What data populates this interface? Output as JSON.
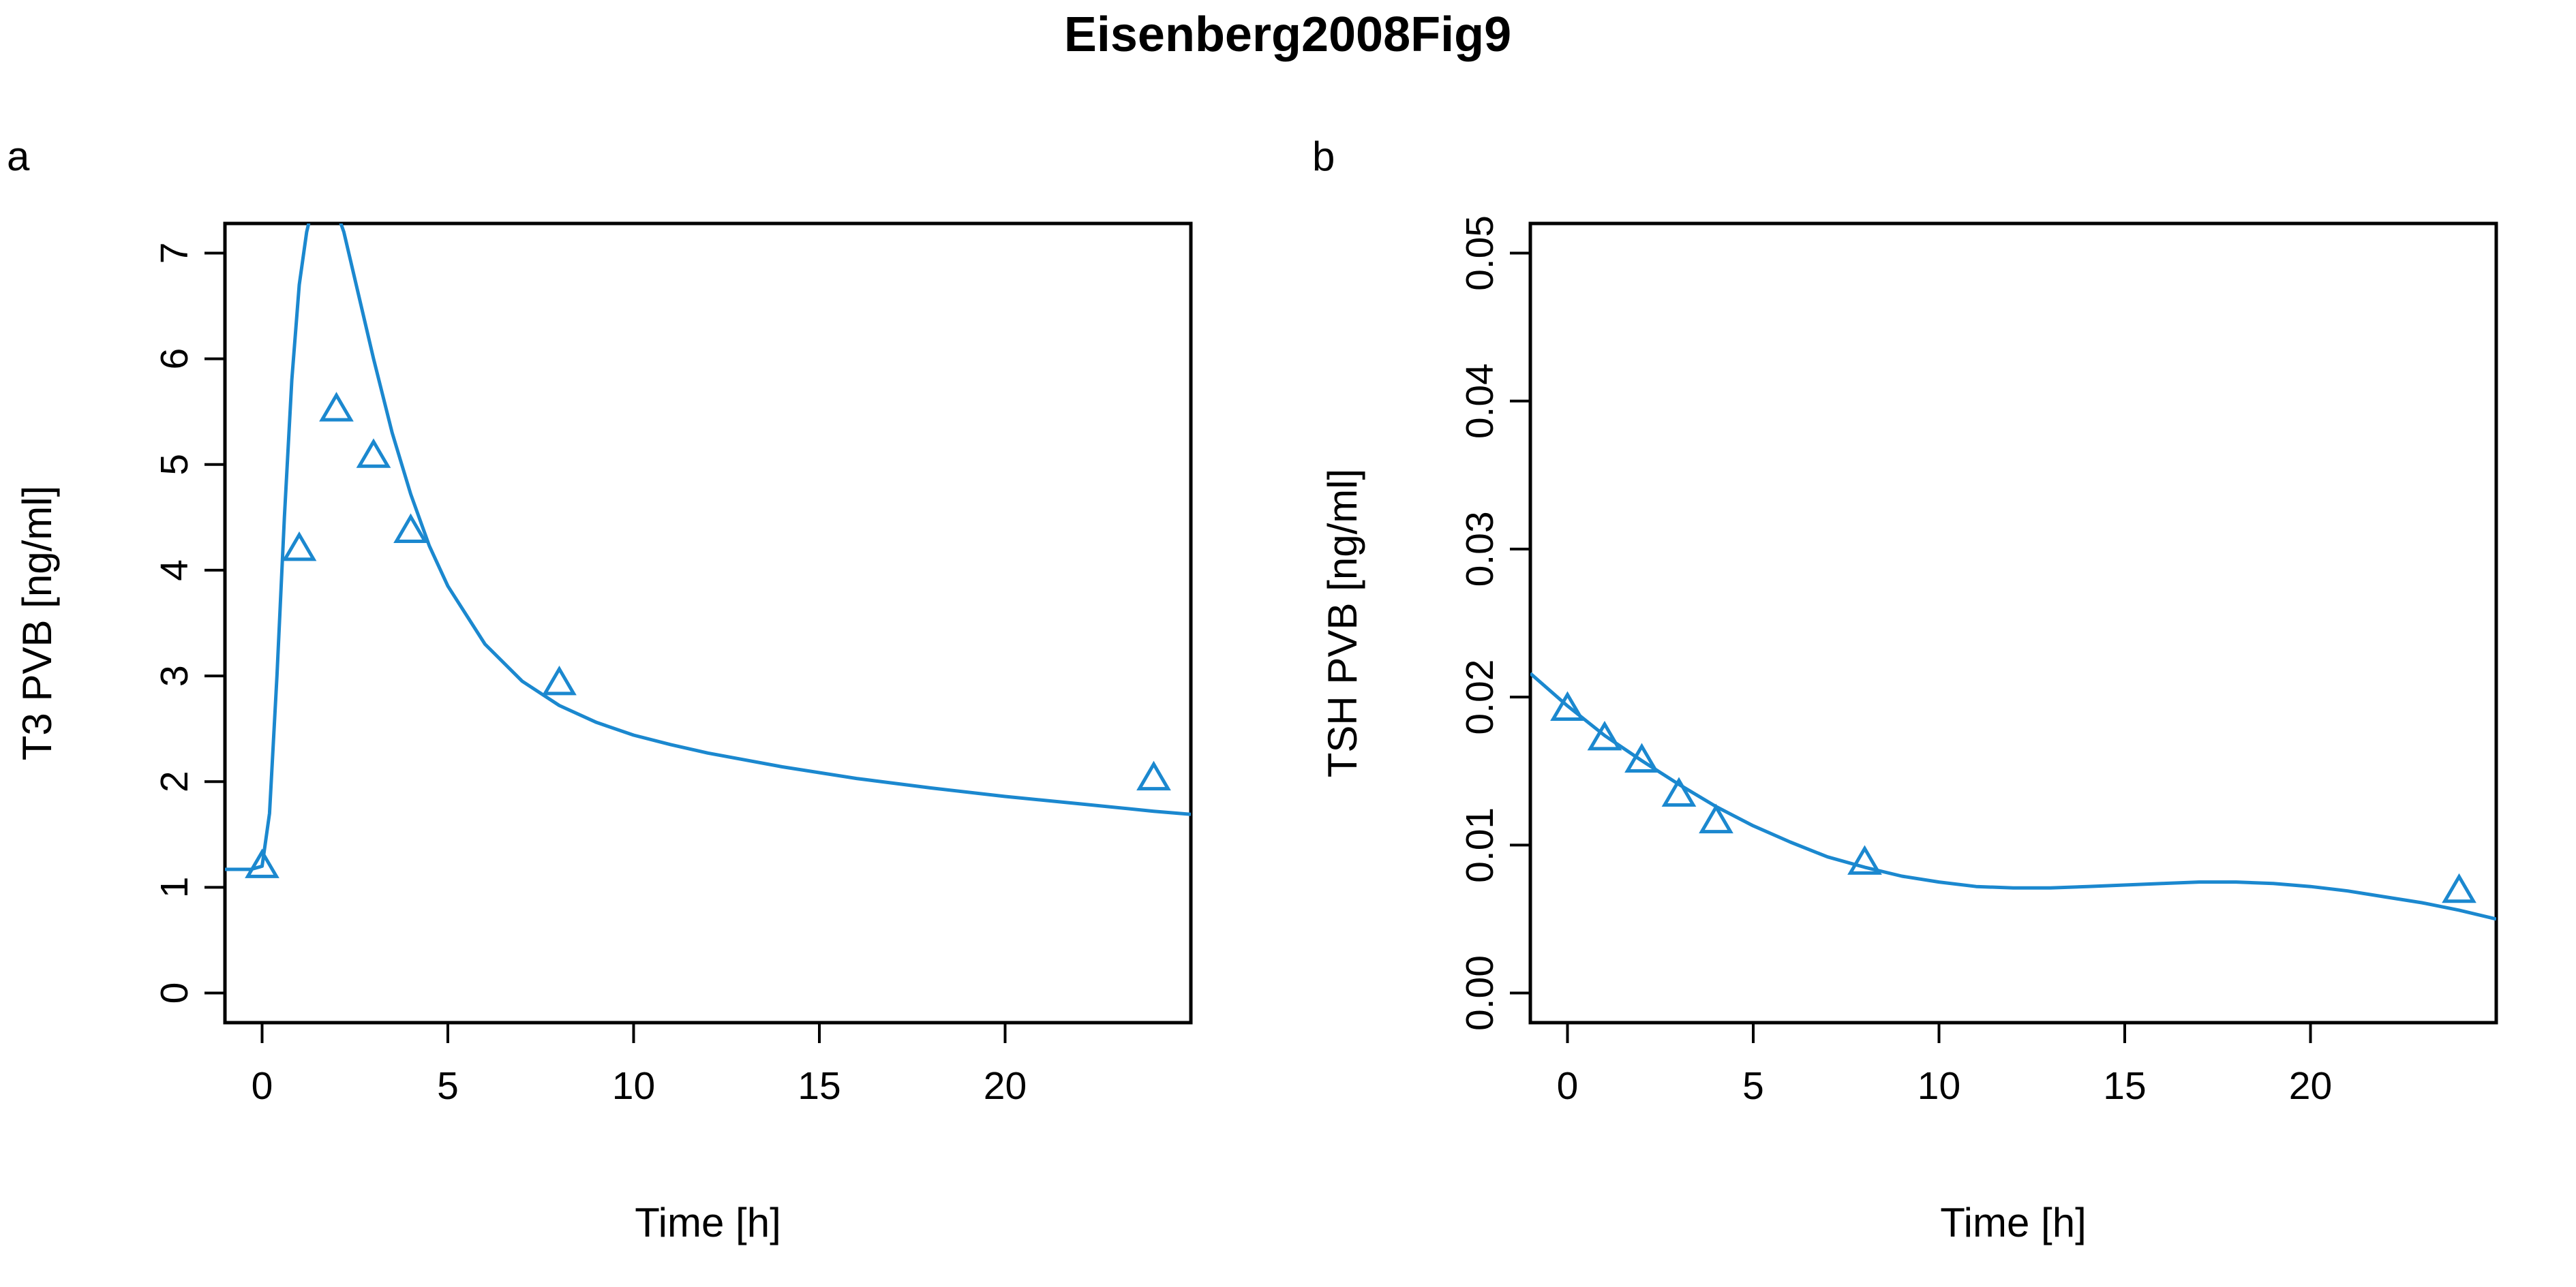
{
  "figure": {
    "title": "Eisenberg2008Fig9"
  },
  "colors": {
    "series": "#1b88cf",
    "axis": "#000000"
  },
  "chart_data": [
    {
      "type": "line",
      "panel_label": "a",
      "xlabel": "Time [h]",
      "ylabel": "T3 PVB [ng/ml]",
      "xlim": [
        -1,
        25
      ],
      "ylim": [
        -0.28,
        7.28
      ],
      "xticks": [
        0,
        5,
        10,
        15,
        20
      ],
      "xtick_labels": [
        "0",
        "5",
        "10",
        "15",
        "20"
      ],
      "yticks": [
        0,
        1,
        2,
        3,
        4,
        5,
        6,
        7
      ],
      "ytick_labels": [
        "0",
        "1",
        "2",
        "3",
        "4",
        "5",
        "6",
        "7"
      ],
      "grid": false,
      "observed": {
        "marker": "triangle-open",
        "x": [
          0,
          1,
          2,
          3,
          4,
          8,
          24
        ],
        "y": [
          1.2,
          4.2,
          5.52,
          5.08,
          4.37,
          2.93,
          2.03
        ]
      },
      "simulated": {
        "x": [
          -1,
          -0.3,
          0,
          0.2,
          0.4,
          0.6,
          0.8,
          1.0,
          1.2,
          1.4,
          1.7,
          2.0,
          2.2,
          2.6,
          3.0,
          3.5,
          4.0,
          4.5,
          5.0,
          6.0,
          7.0,
          8.0,
          9.0,
          10,
          11,
          12,
          14,
          16,
          18,
          20,
          22,
          24,
          25
        ],
        "y": [
          1.17,
          1.17,
          1.2,
          1.7,
          3.0,
          4.5,
          5.8,
          6.7,
          7.2,
          7.5,
          7.55,
          7.4,
          7.2,
          6.6,
          6.0,
          5.3,
          4.72,
          4.23,
          3.85,
          3.3,
          2.95,
          2.72,
          2.56,
          2.44,
          2.35,
          2.27,
          2.14,
          2.03,
          1.94,
          1.86,
          1.79,
          1.72,
          1.69
        ]
      }
    },
    {
      "type": "line",
      "panel_label": "b",
      "xlabel": "Time [h]",
      "ylabel": "TSH PVB [ng/ml]",
      "xlim": [
        -1,
        25
      ],
      "ylim": [
        -0.002,
        0.052
      ],
      "xticks": [
        0,
        5,
        10,
        15,
        20
      ],
      "xtick_labels": [
        "0",
        "5",
        "10",
        "15",
        "20"
      ],
      "yticks": [
        0.0,
        0.01,
        0.02,
        0.03,
        0.04,
        0.05
      ],
      "ytick_labels": [
        "0.00",
        "0.01",
        "0.02",
        "0.03",
        "0.04",
        "0.05"
      ],
      "grid": false,
      "observed": {
        "marker": "triangle-open",
        "x": [
          0,
          1,
          2,
          3,
          4,
          8,
          24
        ],
        "y": [
          0.0192,
          0.0172,
          0.0157,
          0.0134,
          0.0116,
          0.0088,
          0.0069
        ]
      },
      "simulated": {
        "x": [
          -1,
          0,
          1,
          2,
          3,
          4,
          5,
          6,
          7,
          8,
          9,
          10,
          11,
          12,
          13,
          14,
          15,
          16,
          17,
          18,
          19,
          20,
          21,
          22,
          23,
          24,
          25
        ],
        "y": [
          0.0216,
          0.0194,
          0.0174,
          0.0157,
          0.0141,
          0.0126,
          0.0113,
          0.0102,
          0.0092,
          0.0085,
          0.0079,
          0.0075,
          0.0072,
          0.0071,
          0.0071,
          0.0072,
          0.0073,
          0.0074,
          0.0075,
          0.0075,
          0.0074,
          0.0072,
          0.0069,
          0.0065,
          0.0061,
          0.0056,
          0.005
        ]
      }
    }
  ]
}
